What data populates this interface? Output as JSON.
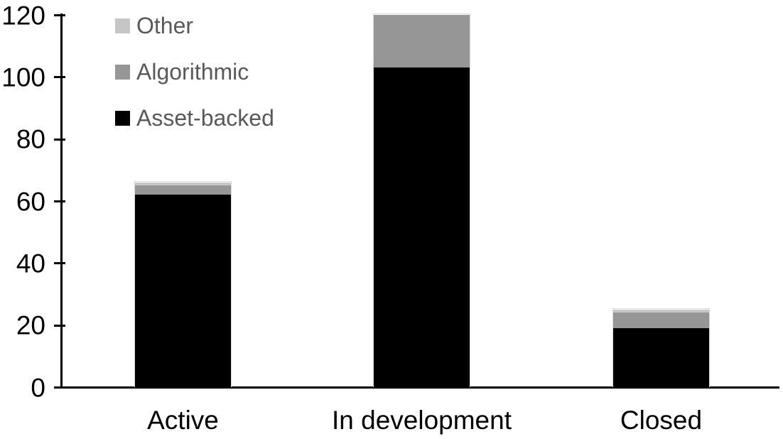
{
  "chart_data": {
    "type": "bar",
    "stacked": true,
    "title": "",
    "xlabel": "",
    "ylabel": "",
    "categories": [
      "Active",
      "In development",
      "Closed"
    ],
    "series": [
      {
        "name": "Asset-backed",
        "color": "#000000",
        "values": [
          62,
          103,
          19
        ]
      },
      {
        "name": "Algorithmic",
        "color": "#969696",
        "values": [
          3,
          17,
          5
        ]
      },
      {
        "name": "Other",
        "color": "#c6c6c6",
        "values": [
          1,
          0,
          1
        ]
      }
    ],
    "totals": [
      66,
      120,
      25
    ],
    "ylim": [
      0,
      120
    ],
    "yticks": [
      0,
      20,
      40,
      60,
      80,
      100,
      120
    ],
    "grid": false,
    "legend_position": "top-left",
    "legend_order": [
      "Other",
      "Algorithmic",
      "Asset-backed"
    ]
  },
  "style": {
    "legend_text_color": "#595959",
    "axis_color": "#000000",
    "background": "#ffffff"
  }
}
